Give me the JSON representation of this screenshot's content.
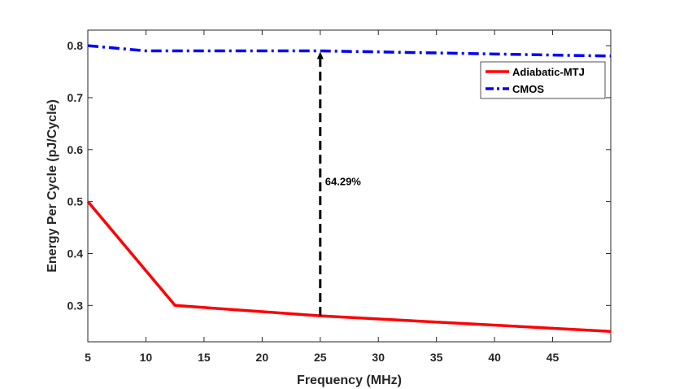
{
  "chart_data": {
    "type": "line",
    "title": "",
    "xlabel": "Frequency (MHz)",
    "ylabel": "Energy Per Cycle (pJ/Cycle)",
    "xlim": [
      5,
      50
    ],
    "ylim": [
      0.23,
      0.83
    ],
    "xticks": [
      5,
      10,
      15,
      20,
      25,
      30,
      35,
      40,
      45
    ],
    "yticks": [
      0.3,
      0.4,
      0.5,
      0.6,
      0.7,
      0.8
    ],
    "xtick_labels": [
      "5",
      "10",
      "15",
      "20",
      "25",
      "30",
      "35",
      "40",
      "45"
    ],
    "ytick_labels": [
      "0.3",
      "0.4",
      "0.5",
      "0.6",
      "0.7",
      "0.8"
    ],
    "grid": false,
    "legend_position": "top-right",
    "series": [
      {
        "name": "Adiabatic-MTJ",
        "color": "#ff0000",
        "style": "solid",
        "x": [
          5,
          12.5,
          25,
          50
        ],
        "y": [
          0.5,
          0.3,
          0.28,
          0.25
        ]
      },
      {
        "name": "CMOS",
        "color": "#0000ff",
        "style": "dash-dot",
        "x": [
          5,
          10,
          25,
          50
        ],
        "y": [
          0.8,
          0.79,
          0.79,
          0.78
        ]
      }
    ],
    "annotation": {
      "text": "64.29%",
      "x": 25,
      "y_from": 0.28,
      "y_to": 0.79
    }
  }
}
